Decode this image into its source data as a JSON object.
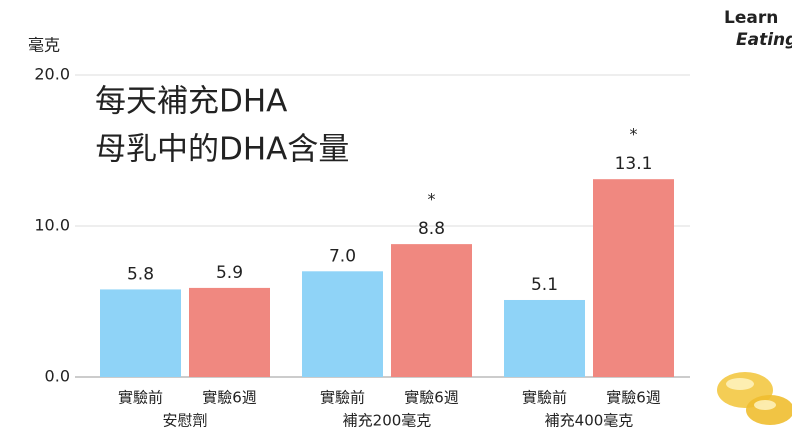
{
  "chart_data": {
    "type": "bar",
    "title_lines": [
      "每天補充DHA",
      "母乳中的DHA含量"
    ],
    "y_label": "毫克",
    "categories": [
      "安慰劑",
      "補充200毫克",
      "補充400毫克"
    ],
    "series": [
      {
        "name": "實驗前",
        "color": "#8fd3f7",
        "values": [
          5.8,
          7.0,
          5.1
        ],
        "value_labels": [
          "5.8",
          "7.0",
          "5.1"
        ]
      },
      {
        "name": "實驗6週",
        "color": "#f08880",
        "values": [
          5.9,
          8.8,
          13.1
        ],
        "value_labels": [
          "5.9",
          "8.8",
          "13.1"
        ],
        "annotations": [
          null,
          "*",
          "*"
        ]
      }
    ],
    "ylim": [
      0,
      20
    ],
    "yticks": [
      {
        "value": 0,
        "label": "0.0"
      },
      {
        "value": 10,
        "label": "10.0"
      },
      {
        "value": 20,
        "label": "20.0"
      }
    ],
    "grid": true
  },
  "logo": {
    "line1": "Learn",
    "line2": "Eating"
  }
}
